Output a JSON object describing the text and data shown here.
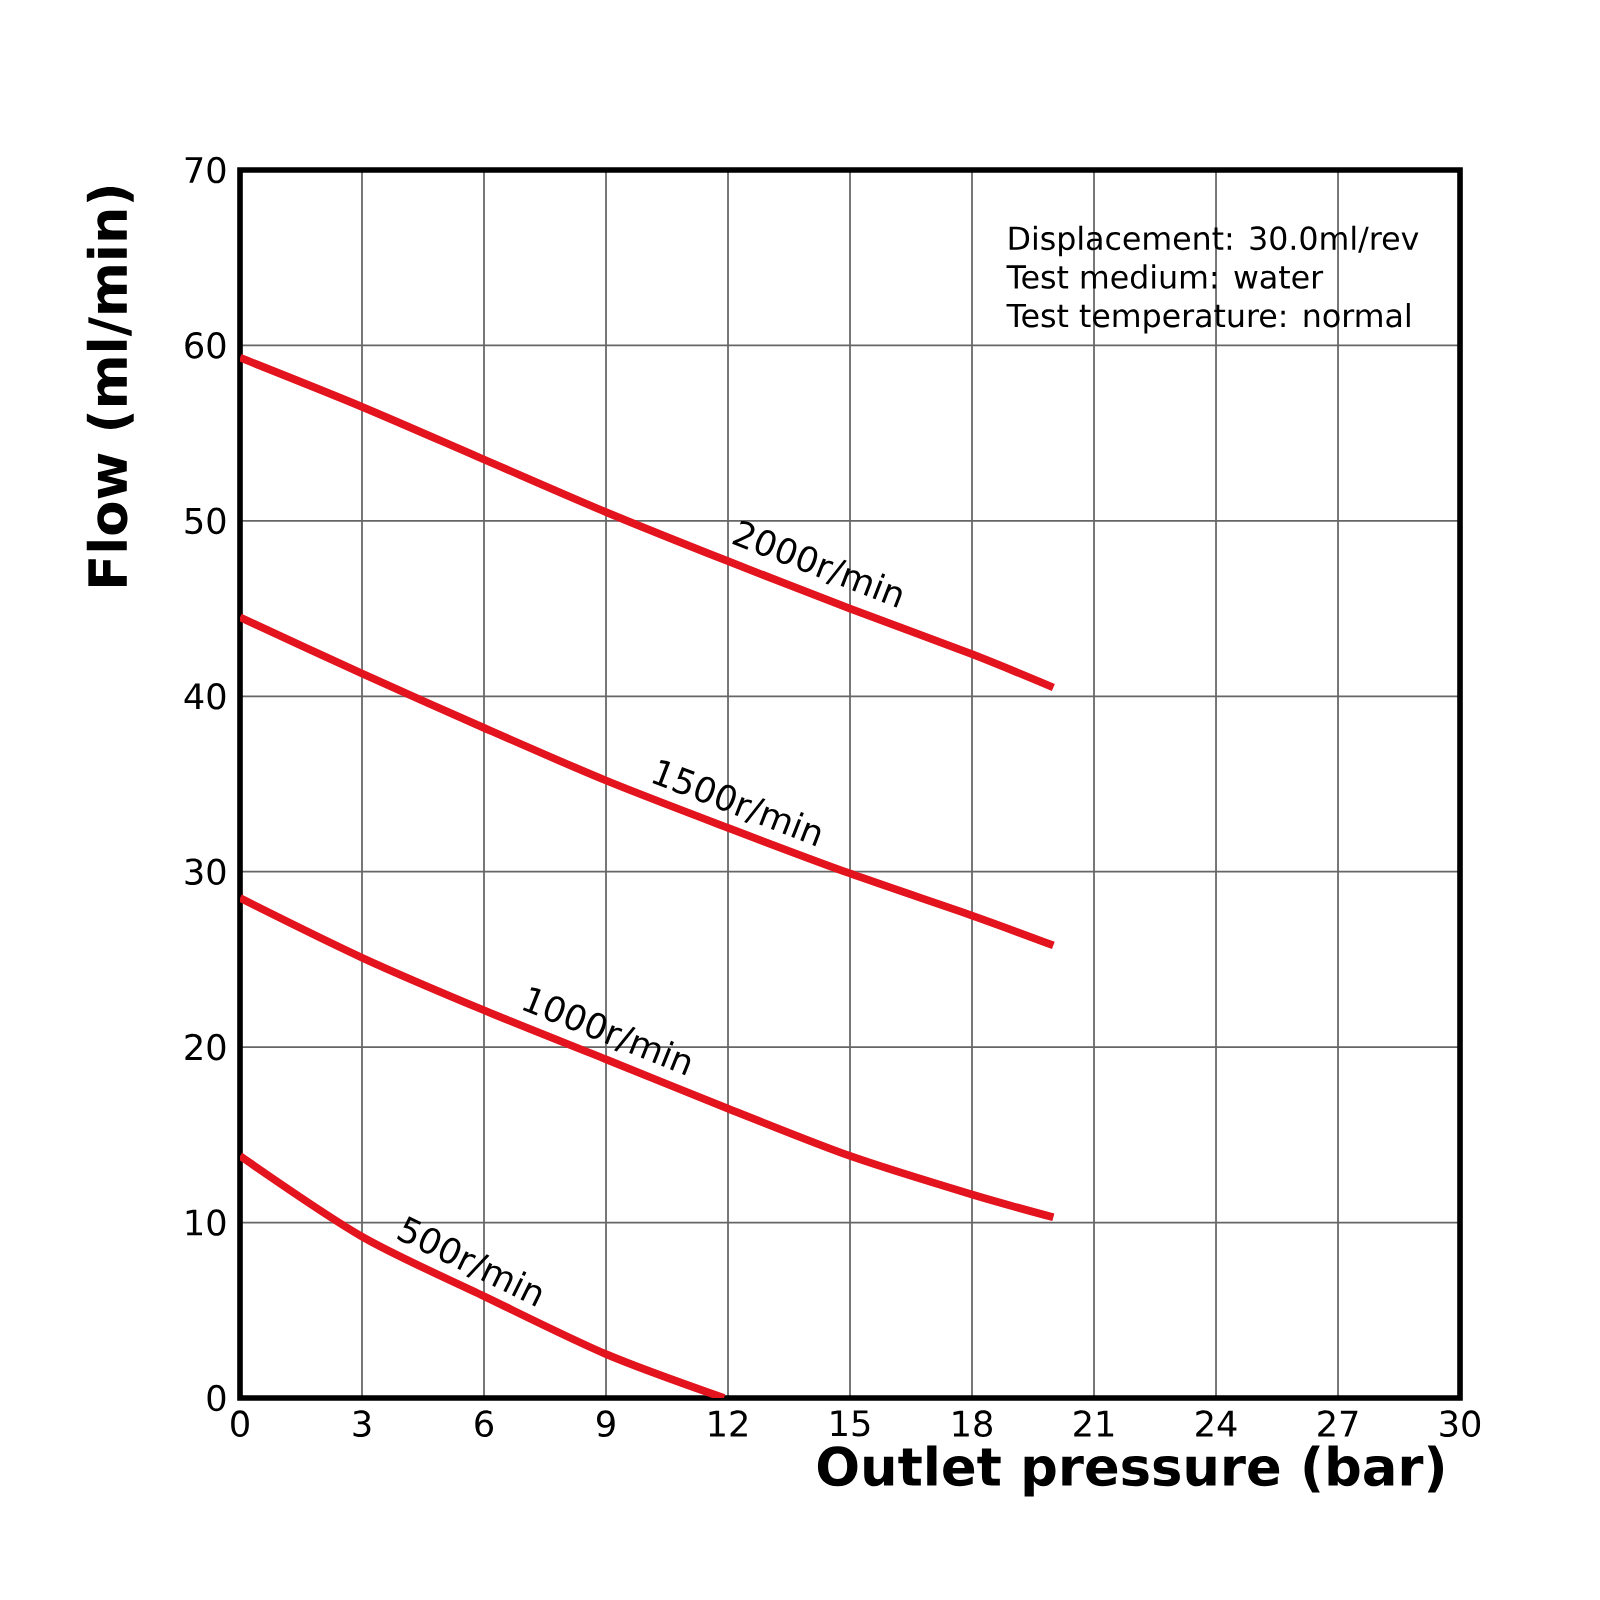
{
  "chart_data": {
    "type": "line",
    "xlabel": "Outlet pressure (bar)",
    "ylabel": "Flow (ml/min)",
    "x": [
      0,
      3,
      6,
      9,
      12,
      15,
      18,
      20
    ],
    "series": [
      {
        "color": "#e3141e",
        "values": [
          59.3,
          56.5,
          53.5,
          50.5,
          47.7,
          45.0,
          42.4,
          40.5
        ]
      },
      {
        "color": "#e3141e",
        "values": [
          44.5,
          41.3,
          38.2,
          35.2,
          32.5,
          29.9,
          27.5,
          25.8
        ]
      },
      {
        "color": "#e3141e",
        "values": [
          28.5,
          25.1,
          22.1,
          19.3,
          16.5,
          13.8,
          11.6,
          10.3
        ]
      },
      {
        "color": "#e3141e",
        "x": [
          0,
          3,
          6,
          9,
          11.9
        ],
        "values": [
          13.8,
          9.2,
          5.8,
          2.5,
          0
        ]
      }
    ],
    "xlim": [
      0,
      30
    ],
    "ylim": [
      0,
      70
    ],
    "xticks": [
      0,
      3,
      6,
      9,
      12,
      15,
      18,
      21,
      24,
      27,
      30
    ],
    "yticks": [
      0,
      10,
      20,
      30,
      40,
      50,
      60,
      70
    ],
    "grid": true,
    "annotations": [
      "Displacement: 30.0ml/rev",
      "Test medium: water",
      "Test temperature: normal",
      {
        "text": "2000r/min",
        "x": 14,
        "y": 46.1
      },
      {
        "text": "1500r/min",
        "x": 12,
        "y": 32.5
      },
      {
        "text": "1000r/min",
        "x": 8.8,
        "y": 19.5
      },
      {
        "text": "500r/min",
        "x": 5.4,
        "y": 6.4
      }
    ]
  }
}
